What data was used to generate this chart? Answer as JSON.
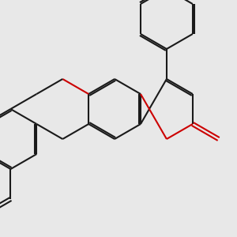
{
  "background_color": "#e8e8e8",
  "line_color": "#1a1a1a",
  "o_color": "#cc0000",
  "lw": 1.5,
  "dbo": 0.022,
  "figsize": [
    3.0,
    3.0
  ],
  "dpi": 100
}
